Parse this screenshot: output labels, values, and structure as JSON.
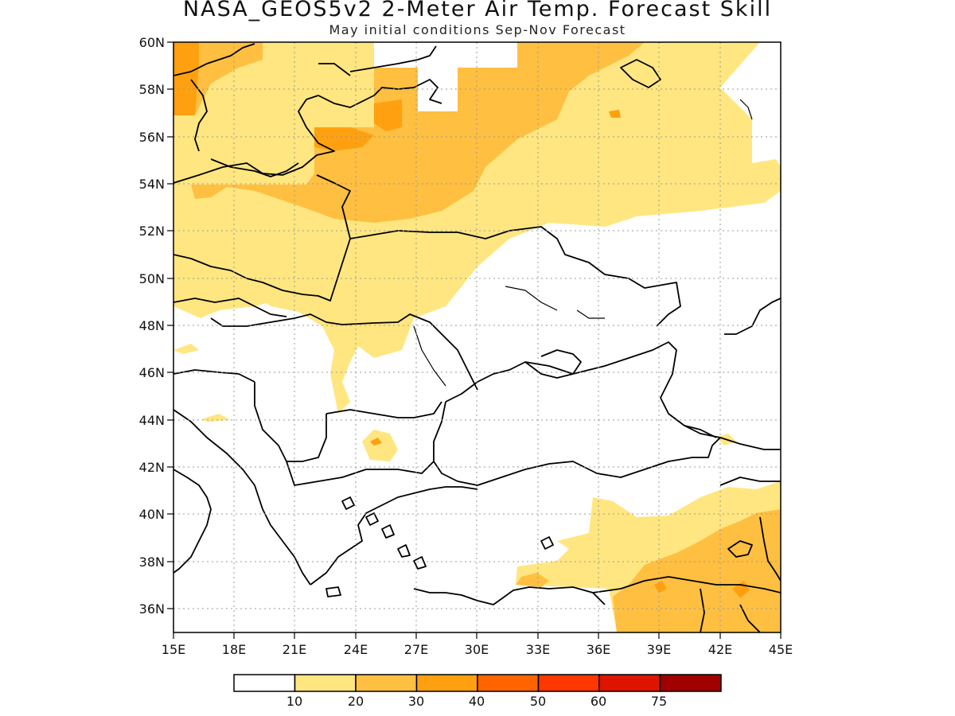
{
  "title": "NASA_GEOS5v2 2-Meter Air Temp. Forecast Skill",
  "subtitle": "May initial conditions  Sep-Nov Forecast",
  "map": {
    "lon_range": [
      15,
      45
    ],
    "lat_range": [
      35,
      60
    ],
    "x_ticks": [
      "15E",
      "18E",
      "21E",
      "24E",
      "27E",
      "30E",
      "33E",
      "36E",
      "39E",
      "42E",
      "45E"
    ],
    "y_ticks": [
      "60N",
      "58N",
      "56N",
      "54N",
      "52N",
      "50N",
      "48N",
      "46N",
      "44N",
      "42N",
      "40N",
      "38N",
      "36N"
    ],
    "grid": "dotted"
  },
  "colorbar": {
    "labels": [
      "10",
      "20",
      "30",
      "40",
      "50",
      "60",
      "75"
    ],
    "colors": [
      "#ffffff",
      "#ffe680",
      "#ffbf40",
      "#ffa010",
      "#ff6400",
      "#ff3700",
      "#dd1500",
      "#a00000"
    ]
  }
}
